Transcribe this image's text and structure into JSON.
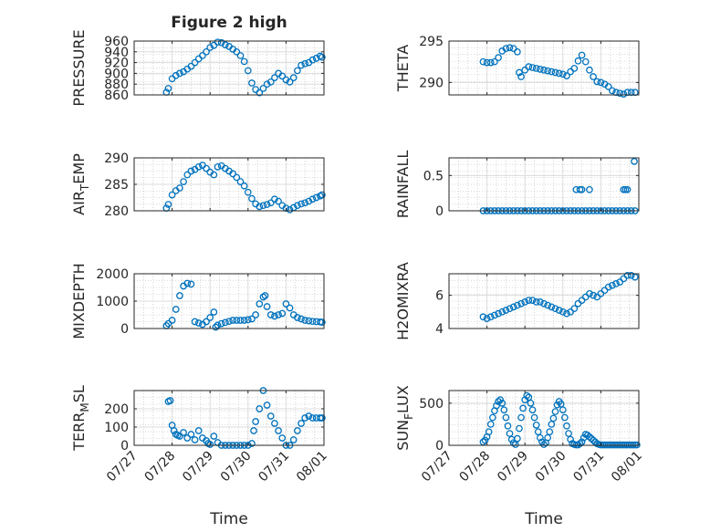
{
  "figure_title": "Figure 2 high",
  "colors": {
    "marker": "#0072BD",
    "axis": "#262626",
    "grid": "#dcdcdc",
    "minor_grid": "#b8b8b8",
    "background": "#ffffff"
  },
  "x_axis": {
    "label": "Time",
    "range_days": [
      27,
      32
    ],
    "ticks": [
      27,
      28,
      29,
      30,
      31,
      32
    ],
    "tick_labels": [
      "07/27",
      "07/28",
      "07/29",
      "07/30",
      "07/31",
      "08/01"
    ]
  },
  "chart_data": [
    {
      "type": "scatter",
      "ylabel": "PRESSURE",
      "ylabel_sub": "",
      "ylim": [
        860,
        960
      ],
      "yticks": [
        860,
        880,
        900,
        920,
        940,
        960
      ],
      "grid": true,
      "minor_grid": true,
      "series": [
        {
          "marker": "circle-open",
          "x": [
            27.85,
            27.9,
            28.0,
            28.1,
            28.2,
            28.3,
            28.4,
            28.5,
            28.6,
            28.7,
            28.8,
            28.9,
            29.0,
            29.1,
            29.2,
            29.3,
            29.4,
            29.5,
            29.6,
            29.7,
            29.8,
            29.9,
            30.0,
            30.1,
            30.2,
            30.3,
            30.4,
            30.5,
            30.6,
            30.7,
            30.8,
            30.9,
            31.0,
            31.1,
            31.2,
            31.3,
            31.4,
            31.5,
            31.6,
            31.7,
            31.8,
            31.9,
            31.95
          ],
          "y": [
            865,
            872,
            890,
            896,
            900,
            903,
            908,
            913,
            920,
            927,
            933,
            940,
            948,
            952,
            958,
            957,
            953,
            950,
            945,
            940,
            933,
            922,
            905,
            882,
            870,
            864,
            872,
            880,
            884,
            892,
            900,
            895,
            888,
            884,
            892,
            905,
            915,
            918,
            920,
            925,
            928,
            932,
            930
          ]
        }
      ]
    },
    {
      "type": "scatter",
      "ylabel": "THETA",
      "ylabel_sub": "",
      "ylim": [
        288.5,
        295
      ],
      "yticks": [
        290,
        295
      ],
      "grid": true,
      "minor_grid": true,
      "series": [
        {
          "marker": "circle-open",
          "x": [
            27.9,
            28.0,
            28.1,
            28.2,
            28.3,
            28.4,
            28.5,
            28.6,
            28.7,
            28.8,
            28.85,
            28.9,
            29.0,
            29.1,
            29.2,
            29.3,
            29.4,
            29.5,
            29.6,
            29.7,
            29.8,
            29.9,
            30.0,
            30.1,
            30.2,
            30.3,
            30.4,
            30.5,
            30.6,
            30.7,
            30.8,
            30.9,
            31.0,
            31.1,
            31.2,
            31.3,
            31.4,
            31.5,
            31.6,
            31.7,
            31.8,
            31.9
          ],
          "y": [
            292.5,
            292.4,
            292.4,
            292.5,
            293.0,
            293.8,
            294.1,
            294.2,
            294.1,
            293.7,
            291.2,
            290.7,
            291.5,
            291.9,
            291.8,
            291.7,
            291.6,
            291.5,
            291.4,
            291.3,
            291.2,
            291.1,
            291.0,
            290.8,
            291.3,
            291.7,
            292.6,
            293.3,
            292.5,
            291.5,
            290.7,
            290.1,
            290.0,
            289.8,
            289.5,
            289.0,
            288.8,
            288.7,
            288.6,
            288.8,
            288.8,
            288.8
          ]
        }
      ]
    },
    {
      "type": "scatter",
      "ylabel": "AIR",
      "ylabel_sub": "T",
      "ylabel_tail": "EMP",
      "ylim": [
        280,
        290
      ],
      "yticks": [
        280,
        285,
        290
      ],
      "grid": true,
      "minor_grid": true,
      "series": [
        {
          "marker": "circle-open",
          "x": [
            27.85,
            27.9,
            28.0,
            28.1,
            28.2,
            28.3,
            28.4,
            28.5,
            28.6,
            28.7,
            28.8,
            28.9,
            29.0,
            29.1,
            29.2,
            29.3,
            29.4,
            29.5,
            29.6,
            29.7,
            29.8,
            29.9,
            30.0,
            30.1,
            30.2,
            30.3,
            30.4,
            30.5,
            30.6,
            30.7,
            30.8,
            30.9,
            31.0,
            31.1,
            31.2,
            31.3,
            31.4,
            31.5,
            31.6,
            31.7,
            31.8,
            31.9,
            31.95
          ],
          "y": [
            280.5,
            281.2,
            283.0,
            283.8,
            284.3,
            285.5,
            286.8,
            287.5,
            287.8,
            288.3,
            288.6,
            288.0,
            287.3,
            286.8,
            288.3,
            288.5,
            288.0,
            287.5,
            287.0,
            286.3,
            285.5,
            284.7,
            283.5,
            282.3,
            281.3,
            280.8,
            281.0,
            281.2,
            281.5,
            282.2,
            281.8,
            281.0,
            280.5,
            280.2,
            280.6,
            281.0,
            281.3,
            281.5,
            281.8,
            282.2,
            282.5,
            282.8,
            283.0
          ]
        }
      ]
    },
    {
      "type": "scatter",
      "ylabel": "RAINFALL",
      "ylabel_sub": "",
      "ylim": [
        0,
        0.75
      ],
      "yticks": [
        0,
        0.5
      ],
      "grid": true,
      "minor_grid": true,
      "series": [
        {
          "marker": "circle-open",
          "x": [
            27.9,
            28.0,
            28.1,
            28.2,
            28.3,
            28.4,
            28.5,
            28.6,
            28.7,
            28.8,
            28.9,
            29.0,
            29.1,
            29.2,
            29.3,
            29.4,
            29.5,
            29.6,
            29.7,
            29.8,
            29.9,
            30.0,
            30.1,
            30.2,
            30.3,
            30.4,
            30.5,
            30.6,
            30.7,
            30.8,
            30.9,
            31.0,
            31.1,
            31.2,
            31.3,
            31.4,
            31.5,
            31.6,
            31.7,
            31.8,
            31.9,
            30.35,
            30.45,
            30.5,
            30.7,
            31.6,
            31.65,
            31.7,
            31.88
          ],
          "y": [
            0,
            0,
            0,
            0,
            0,
            0,
            0,
            0,
            0,
            0,
            0,
            0,
            0,
            0,
            0,
            0,
            0,
            0,
            0,
            0,
            0,
            0,
            0,
            0,
            0,
            0,
            0,
            0,
            0,
            0,
            0,
            0,
            0,
            0,
            0,
            0,
            0,
            0,
            0,
            0,
            0,
            0.3,
            0.3,
            0.3,
            0.3,
            0.3,
            0.3,
            0.3,
            0.7
          ]
        }
      ]
    },
    {
      "type": "scatter",
      "ylabel": "MIXDEPTH",
      "ylabel_sub": "",
      "ylim": [
        0,
        2000
      ],
      "yticks": [
        0,
        1000,
        2000
      ],
      "grid": true,
      "minor_grid": true,
      "series": [
        {
          "marker": "circle-open",
          "x": [
            27.85,
            27.9,
            28.0,
            28.1,
            28.2,
            28.3,
            28.4,
            28.5,
            28.6,
            28.7,
            28.8,
            28.9,
            29.0,
            29.1,
            29.15,
            29.2,
            29.3,
            29.4,
            29.5,
            29.6,
            29.7,
            29.8,
            29.9,
            30.0,
            30.1,
            30.2,
            30.3,
            30.4,
            30.45,
            30.5,
            30.6,
            30.7,
            30.8,
            30.9,
            31.0,
            31.1,
            31.2,
            31.3,
            31.4,
            31.5,
            31.6,
            31.7,
            31.8,
            31.9,
            31.95
          ],
          "y": [
            100,
            180,
            300,
            700,
            1200,
            1550,
            1650,
            1620,
            250,
            200,
            150,
            250,
            400,
            600,
            50,
            120,
            180,
            220,
            260,
            300,
            300,
            300,
            300,
            320,
            350,
            500,
            900,
            1150,
            1200,
            800,
            500,
            450,
            500,
            550,
            900,
            750,
            500,
            400,
            350,
            300,
            280,
            260,
            250,
            240,
            230
          ]
        }
      ]
    },
    {
      "type": "scatter",
      "ylabel": "H2OMIXRA",
      "ylabel_sub": "",
      "ylim": [
        4,
        7.3
      ],
      "yticks": [
        4,
        6
      ],
      "grid": true,
      "minor_grid": true,
      "series": [
        {
          "marker": "circle-open",
          "x": [
            27.9,
            28.0,
            28.1,
            28.2,
            28.3,
            28.4,
            28.5,
            28.6,
            28.7,
            28.8,
            28.9,
            29.0,
            29.1,
            29.2,
            29.3,
            29.4,
            29.5,
            29.6,
            29.7,
            29.8,
            29.9,
            30.0,
            30.1,
            30.2,
            30.3,
            30.4,
            30.5,
            30.6,
            30.7,
            30.8,
            30.9,
            31.0,
            31.1,
            31.2,
            31.3,
            31.4,
            31.5,
            31.6,
            31.7,
            31.8,
            31.9
          ],
          "y": [
            4.7,
            4.6,
            4.7,
            4.8,
            4.9,
            5.0,
            5.1,
            5.2,
            5.3,
            5.4,
            5.5,
            5.6,
            5.7,
            5.7,
            5.6,
            5.6,
            5.5,
            5.4,
            5.3,
            5.2,
            5.1,
            5.0,
            4.9,
            5.0,
            5.2,
            5.5,
            5.7,
            5.9,
            6.1,
            6.0,
            5.9,
            6.1,
            6.3,
            6.5,
            6.6,
            6.7,
            6.8,
            7.0,
            7.2,
            7.2,
            7.1
          ]
        }
      ]
    },
    {
      "type": "scatter",
      "ylabel": "TERR",
      "ylabel_sub": "M",
      "ylabel_tail": "SL",
      "ylim": [
        0,
        300
      ],
      "yticks": [
        0,
        100,
        200
      ],
      "grid": true,
      "minor_grid": true,
      "series": [
        {
          "marker": "circle-open",
          "x": [
            27.9,
            27.95,
            28.0,
            28.05,
            28.1,
            28.15,
            28.2,
            28.3,
            28.4,
            28.5,
            28.6,
            28.7,
            28.8,
            28.9,
            28.95,
            29.0,
            29.1,
            29.2,
            29.3,
            29.4,
            29.5,
            29.6,
            29.7,
            29.8,
            29.9,
            30.0,
            30.1,
            30.15,
            30.2,
            30.3,
            30.4,
            30.5,
            30.6,
            30.7,
            30.8,
            30.9,
            31.0,
            31.1,
            31.2,
            31.3,
            31.4,
            31.5,
            31.6,
            31.7,
            31.8,
            31.9,
            31.95
          ],
          "y": [
            240,
            245,
            110,
            80,
            60,
            55,
            50,
            70,
            40,
            60,
            30,
            80,
            40,
            25,
            10,
            5,
            50,
            15,
            0,
            0,
            0,
            0,
            0,
            0,
            0,
            0,
            10,
            80,
            130,
            200,
            300,
            220,
            160,
            120,
            80,
            40,
            0,
            0,
            30,
            80,
            120,
            150,
            160,
            150,
            150,
            150,
            150
          ]
        }
      ]
    },
    {
      "type": "scatter",
      "ylabel": "SUN",
      "ylabel_sub": "F",
      "ylabel_tail": "LUX",
      "ylim": [
        0,
        650
      ],
      "yticks": [
        0,
        500
      ],
      "grid": true,
      "minor_grid": true,
      "series": [
        {
          "marker": "circle-open",
          "x": [
            27.9,
            27.95,
            28.0,
            28.05,
            28.1,
            28.15,
            28.2,
            28.25,
            28.3,
            28.35,
            28.4,
            28.45,
            28.5,
            28.55,
            28.6,
            28.65,
            28.7,
            28.75,
            28.8,
            28.85,
            28.9,
            28.95,
            29.0,
            29.05,
            29.1,
            29.15,
            29.2,
            29.25,
            29.3,
            29.35,
            29.4,
            29.45,
            29.5,
            29.55,
            29.6,
            29.65,
            29.7,
            29.75,
            29.8,
            29.85,
            29.9,
            29.95,
            30.0,
            30.05,
            30.1,
            30.15,
            30.2,
            30.25,
            30.3,
            30.35,
            30.4,
            30.45,
            30.5,
            30.55,
            30.6,
            30.65,
            30.7,
            30.75,
            30.8,
            30.85,
            30.9,
            30.95,
            31.0,
            31.05,
            31.1,
            31.15,
            31.2,
            31.25,
            31.3,
            31.35,
            31.4,
            31.45,
            31.5,
            31.55,
            31.6,
            31.65,
            31.7,
            31.75,
            31.8,
            31.85,
            31.9,
            31.95
          ],
          "y": [
            40,
            60,
            100,
            160,
            250,
            330,
            410,
            470,
            520,
            540,
            500,
            420,
            330,
            230,
            140,
            70,
            30,
            10,
            80,
            200,
            330,
            440,
            540,
            590,
            570,
            500,
            420,
            330,
            240,
            160,
            90,
            40,
            10,
            30,
            90,
            160,
            250,
            320,
            400,
            480,
            520,
            490,
            420,
            330,
            230,
            140,
            70,
            20,
            10,
            5,
            5,
            20,
            40,
            90,
            130,
            120,
            100,
            80,
            60,
            40,
            20,
            10,
            5,
            5,
            5,
            5,
            5,
            5,
            5,
            5,
            5,
            5,
            5,
            5,
            5,
            5,
            5,
            5,
            5,
            5,
            5,
            5
          ]
        }
      ]
    }
  ]
}
